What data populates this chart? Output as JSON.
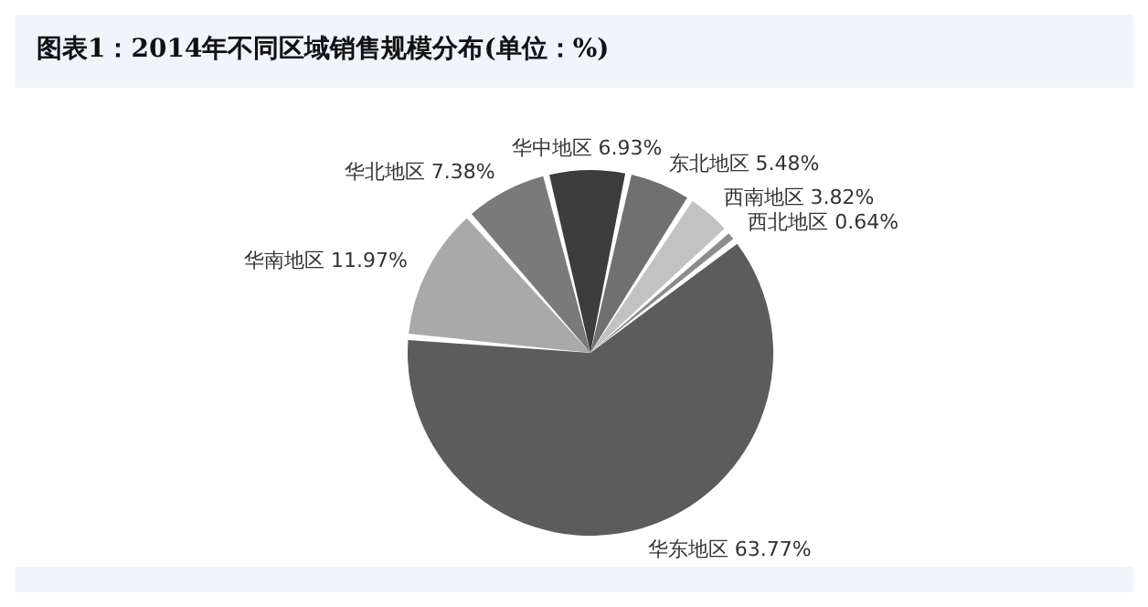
{
  "chart_data": {
    "type": "pie",
    "title": "图表1：2014年不同区域销售规模分布(单位：%)",
    "categories": [
      "华中地区",
      "东北地区",
      "西南地区",
      "西北地区",
      "华东地区",
      "华南地区",
      "华北地区"
    ],
    "values": [
      6.93,
      5.48,
      3.82,
      0.64,
      63.77,
      11.97,
      7.38
    ],
    "value_labels": [
      "6.93%",
      "5.48%",
      "3.82%",
      "0.64%",
      "63.77%",
      "11.97%",
      "7.38%"
    ],
    "colors": [
      "#3d3d3d",
      "#707070",
      "#c2c2c2",
      "#8c8c8c",
      "#5c5c5c",
      "#a9a9a9",
      "#7a7a7a"
    ],
    "legend": false
  }
}
